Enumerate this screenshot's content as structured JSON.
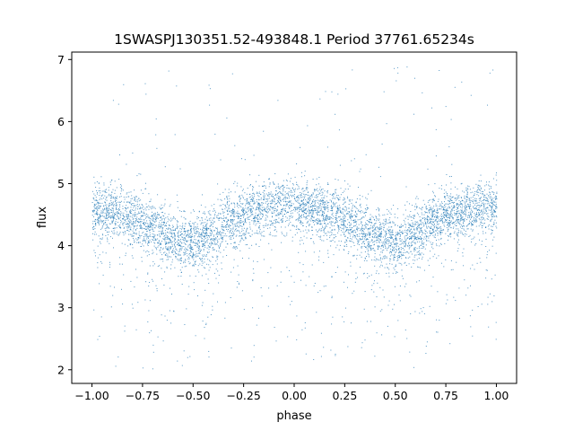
{
  "chart_data": {
    "type": "scatter",
    "title": "1SWASPJ130351.52-493848.1 Period 37761.65234s",
    "xlabel": "phase",
    "ylabel": "flux",
    "xlim": [
      -1.1,
      1.1
    ],
    "ylim": [
      1.78,
      7.12
    ],
    "x_ticks": [
      -1.0,
      -0.75,
      -0.5,
      -0.25,
      0.0,
      0.25,
      0.5,
      0.75,
      1.0
    ],
    "x_tick_labels": [
      "−1.00",
      "−0.75",
      "−0.50",
      "−0.25",
      "0.00",
      "0.25",
      "0.50",
      "0.75",
      "1.00"
    ],
    "y_ticks": [
      2,
      3,
      4,
      5,
      6,
      7
    ],
    "y_tick_labels": [
      "2",
      "3",
      "4",
      "5",
      "6",
      "7"
    ],
    "grid": false,
    "point_color": "#1f77b4",
    "series": [
      {
        "description_of_trend_samples": "phased light curve, dense band of points with approximate trend",
        "phase": [
          -1.0,
          -0.9,
          -0.8,
          -0.7,
          -0.6,
          -0.5,
          -0.4,
          -0.3,
          -0.2,
          -0.1,
          0.0,
          0.1,
          0.2,
          0.3,
          0.4,
          0.5,
          0.6,
          0.7,
          0.8,
          0.9,
          1.0
        ],
        "flux_median": [
          4.6,
          4.55,
          4.45,
          4.3,
          4.15,
          4.05,
          4.2,
          4.45,
          4.6,
          4.65,
          4.65,
          4.6,
          4.5,
          4.35,
          4.15,
          4.05,
          4.2,
          4.45,
          4.55,
          4.6,
          4.65
        ]
      }
    ]
  }
}
